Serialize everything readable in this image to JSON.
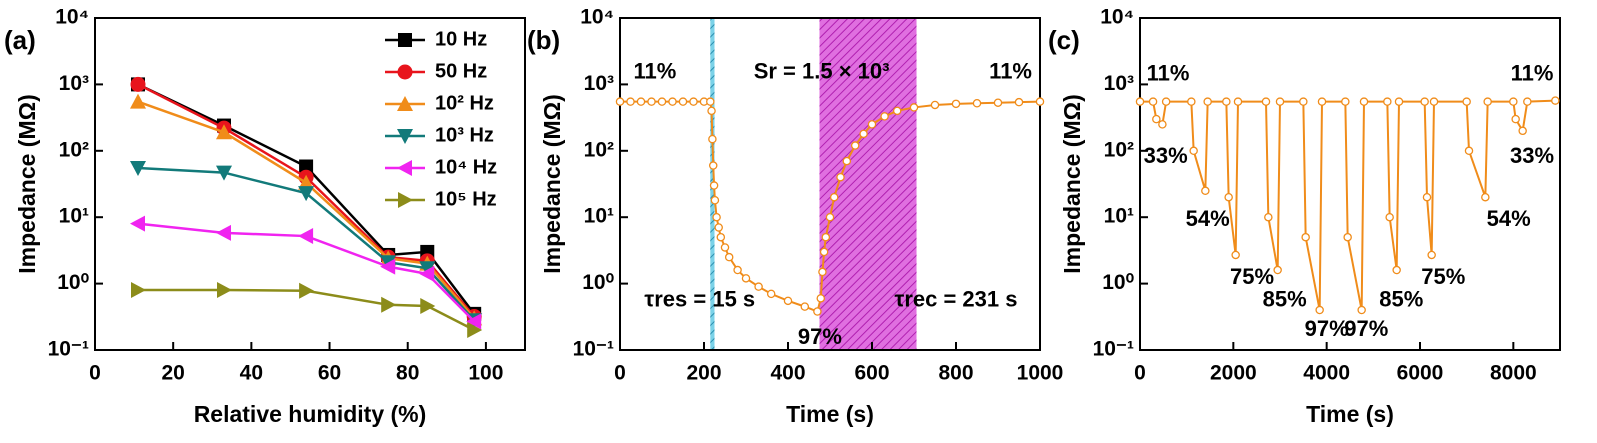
{
  "chart_data": [
    {
      "type": "line",
      "panel": "(a)",
      "x_label": "Relative humidity (%)",
      "y_label": "Impedance (MΩ)",
      "log_y": true,
      "legend": "upper right",
      "xlim": [
        0,
        110
      ],
      "xticks": [
        0,
        20,
        40,
        60,
        80,
        100
      ],
      "ylim": [
        0.1,
        10000
      ],
      "yticks": [
        {
          "value": 0.1,
          "label": "10⁻¹"
        },
        {
          "value": 1,
          "label": "10⁰"
        },
        {
          "value": 10,
          "label": "10¹"
        },
        {
          "value": 100,
          "label": "10²"
        },
        {
          "value": 1000,
          "label": "10³"
        },
        {
          "value": 10000,
          "label": "10⁴"
        }
      ],
      "x": [
        11,
        33,
        54,
        75,
        85,
        97
      ],
      "series": [
        {
          "name": "10 Hz",
          "color": "#000000",
          "marker": "square",
          "values": [
            1000,
            240,
            58,
            2.7,
            3.0,
            0.35
          ]
        },
        {
          "name": "50 Hz",
          "color": "#e8141c",
          "marker": "circle",
          "values": [
            1000,
            220,
            40,
            2.5,
            2.2,
            0.32
          ]
        },
        {
          "name": "10² Hz",
          "color": "#f08c1a",
          "marker": "triangle-up",
          "values": [
            550,
            190,
            33,
            2.4,
            2.0,
            0.3
          ]
        },
        {
          "name": "10³ Hz",
          "color": "#127a7a",
          "marker": "triangle-down",
          "values": [
            55,
            47,
            23,
            2.1,
            1.7,
            0.28
          ]
        },
        {
          "name": "10⁴ Hz",
          "color": "#f024f0",
          "marker": "triangle-left",
          "values": [
            8,
            5.8,
            5.2,
            1.8,
            1.4,
            0.27
          ]
        },
        {
          "name": "10⁵ Hz",
          "color": "#8c8c1a",
          "marker": "triangle-right",
          "values": [
            0.8,
            0.8,
            0.78,
            0.48,
            0.46,
            0.2
          ]
        }
      ]
    },
    {
      "type": "line",
      "panel": "(b)",
      "x_label": "Time (s)",
      "y_label": "Impedance (MΩ)",
      "log_y": true,
      "xlim": [
        0,
        1000
      ],
      "xticks": [
        0,
        200,
        400,
        600,
        800,
        1000
      ],
      "ylim": [
        0.1,
        10000
      ],
      "yticks": [
        {
          "value": 0.1,
          "label": "10⁻¹"
        },
        {
          "value": 1,
          "label": "10⁰"
        },
        {
          "value": 10,
          "label": "10¹"
        },
        {
          "value": 100,
          "label": "10²"
        },
        {
          "value": 1000,
          "label": "10³"
        },
        {
          "value": 10000,
          "label": "10⁴"
        }
      ],
      "spans": [
        {
          "x": [
            215,
            225
          ],
          "color": "#4fc3e0"
        },
        {
          "x": [
            475,
            706
          ],
          "color": "#d63fd6"
        }
      ],
      "annotations": [
        "11%",
        "Sr = 1.5 × 10³",
        "11%",
        "τres = 15 s",
        "97%",
        "τrec = 231 s"
      ],
      "x": [
        0,
        25,
        50,
        75,
        100,
        125,
        150,
        175,
        200,
        215,
        218,
        220,
        222,
        224,
        226,
        230,
        235,
        240,
        250,
        260,
        280,
        300,
        330,
        360,
        400,
        440,
        470,
        478,
        482,
        486,
        490,
        500,
        510,
        525,
        540,
        560,
        580,
        600,
        630,
        660,
        700,
        750,
        800,
        850,
        900,
        950,
        1000
      ],
      "series": [
        {
          "color": "#f08c1a",
          "marker": "open-circle",
          "values": [
            550,
            550,
            550,
            550,
            550,
            550,
            550,
            550,
            550,
            550,
            400,
            150,
            60,
            30,
            18,
            10,
            7,
            5,
            3.5,
            2.5,
            1.6,
            1.2,
            0.9,
            0.7,
            0.55,
            0.45,
            0.38,
            0.6,
            1.5,
            3,
            5,
            10,
            20,
            40,
            70,
            120,
            180,
            250,
            330,
            400,
            450,
            490,
            510,
            520,
            530,
            540,
            550
          ]
        }
      ]
    },
    {
      "type": "line",
      "panel": "(c)",
      "x_label": "Time (s)",
      "y_label": "Impedance (MΩ)",
      "log_y": true,
      "xlim": [
        0,
        9000
      ],
      "xticks": [
        0,
        2000,
        4000,
        6000,
        8000
      ],
      "ylim": [
        0.1,
        10000
      ],
      "yticks": [
        {
          "value": 0.1,
          "label": "10⁻¹"
        },
        {
          "value": 1,
          "label": "10⁰"
        },
        {
          "value": 10,
          "label": "10¹"
        },
        {
          "value": 100,
          "label": "10²"
        },
        {
          "value": 1000,
          "label": "10³"
        },
        {
          "value": 10000,
          "label": "10⁴"
        }
      ],
      "annotations": [
        "11%",
        "33%",
        "54%",
        "75%",
        "85%",
        "97%",
        "97%",
        "85%",
        "75%",
        "54%",
        "33%",
        "11%"
      ],
      "x": [
        0,
        280,
        350,
        480,
        560,
        1100,
        1150,
        1400,
        1450,
        1850,
        1900,
        2050,
        2100,
        2700,
        2750,
        2950,
        3000,
        3500,
        3550,
        3850,
        3900,
        4400,
        4450,
        4750,
        4800,
        5300,
        5350,
        5500,
        5550,
        6100,
        6150,
        6250,
        6300,
        7000,
        7050,
        7400,
        7450,
        8000,
        8050,
        8200,
        8300,
        8900
      ],
      "series": [
        {
          "color": "#f08c1a",
          "marker": "open-circle",
          "values": [
            550,
            550,
            300,
            250,
            550,
            550,
            100,
            25,
            550,
            550,
            20,
            2.7,
            550,
            550,
            10,
            1.6,
            550,
            550,
            5,
            0.4,
            550,
            550,
            5,
            0.4,
            550,
            550,
            10,
            1.6,
            550,
            550,
            20,
            2.7,
            550,
            550,
            100,
            20,
            550,
            550,
            300,
            200,
            550,
            570
          ]
        }
      ]
    }
  ]
}
